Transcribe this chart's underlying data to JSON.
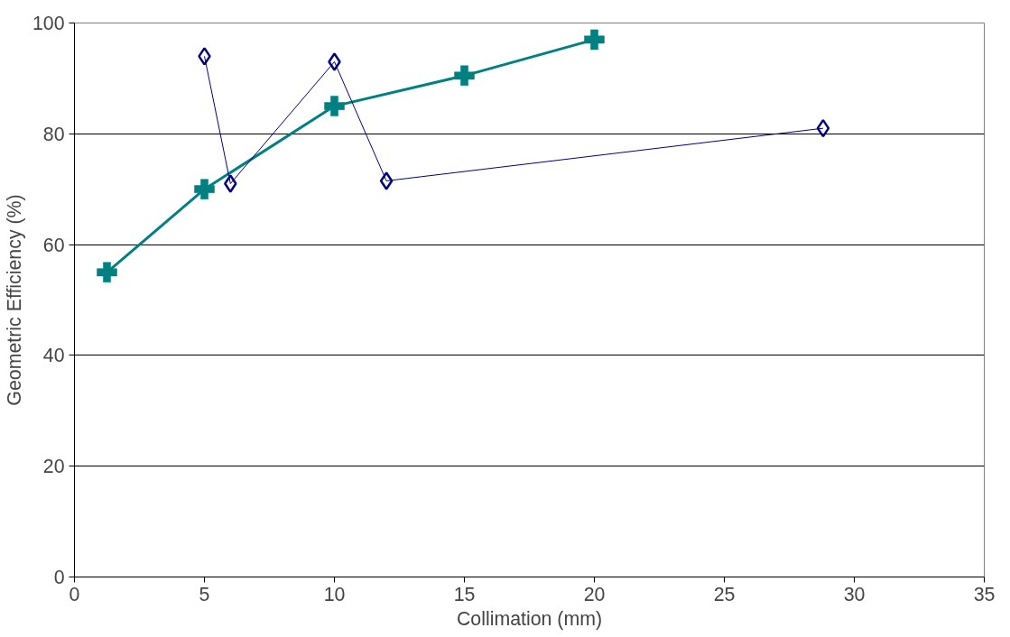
{
  "chart_data": {
    "type": "line",
    "xlabel": "Collimation (mm)",
    "ylabel": "Geometric Efficiency (%)",
    "xlim": [
      0,
      35
    ],
    "xticks": [
      0,
      5,
      10,
      15,
      20,
      25,
      30,
      35
    ],
    "ylim": [
      0,
      100
    ],
    "yticks": [
      0,
      20,
      40,
      60,
      80,
      100
    ],
    "grid": "y",
    "series": [
      {
        "color": "#008080",
        "marker": "cross",
        "x": [
          1.25,
          5,
          10,
          15,
          20
        ],
        "values": [
          55,
          70,
          85,
          90.5,
          97
        ]
      },
      {
        "color": "#000080",
        "marker": "diamond",
        "x": [
          5,
          6,
          10,
          12,
          28.8
        ],
        "values": [
          94,
          71,
          93,
          71.5,
          81
        ]
      }
    ]
  }
}
